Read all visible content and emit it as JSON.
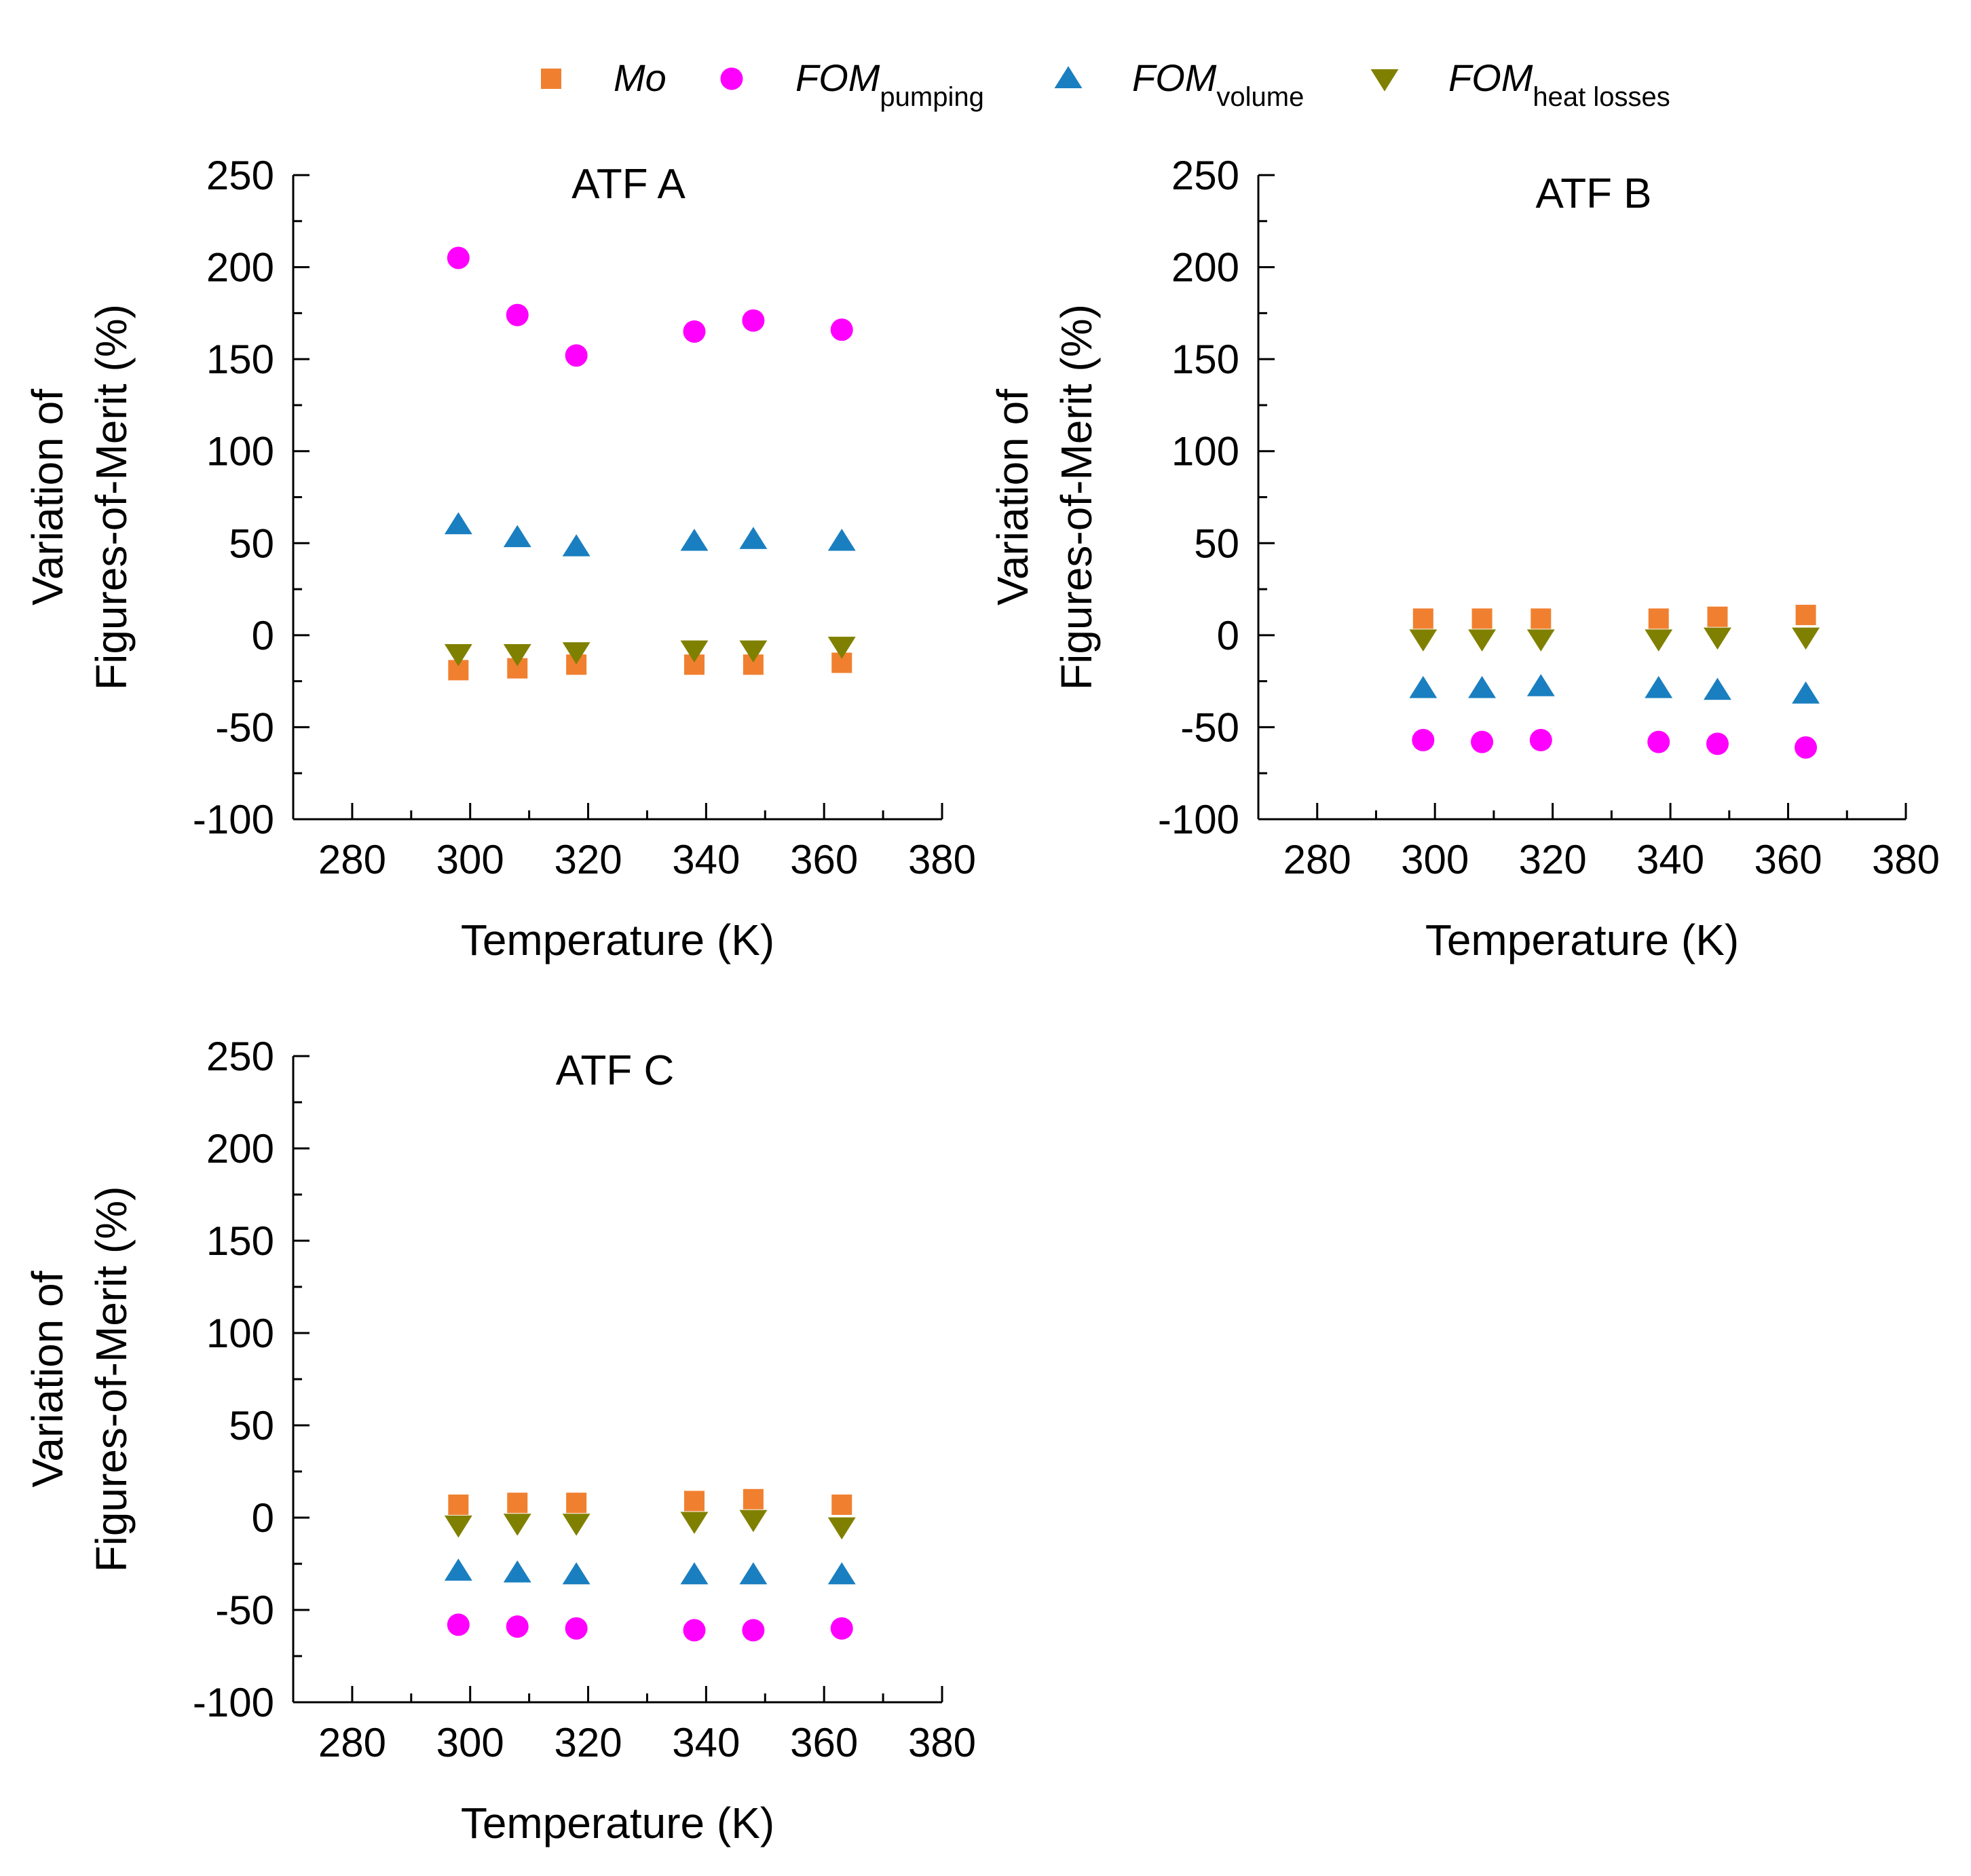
{
  "legend": {
    "entries": [
      {
        "key": "mo",
        "main": "Mo",
        "sub": "",
        "marker": "square",
        "color": "#F08030"
      },
      {
        "key": "pumping",
        "main": "FOM",
        "sub": "pumping",
        "marker": "circle",
        "color": "#FF00FF"
      },
      {
        "key": "volume",
        "main": "FOM",
        "sub": "volume",
        "marker": "triangle-up",
        "color": "#1A7FC0"
      },
      {
        "key": "heat",
        "main": "FOM",
        "sub": "heat losses",
        "marker": "triangle-down",
        "color": "#808000"
      }
    ]
  },
  "chart_data": [
    {
      "type": "scatter",
      "title": "ATF A",
      "xlabel": "Temperature (K)",
      "ylabel": [
        "Variation of",
        "Figures-of-Merit (%)"
      ],
      "xlim": [
        270,
        380
      ],
      "ylim": [
        -100,
        250
      ],
      "xticks": [
        280,
        300,
        320,
        340,
        360,
        380
      ],
      "yticks": [
        -100,
        -50,
        0,
        50,
        100,
        150,
        200,
        250
      ],
      "x": [
        298,
        308,
        318,
        338,
        348,
        363
      ],
      "series": [
        {
          "name": "Mo",
          "key": "mo",
          "values": [
            -19,
            -18,
            -16,
            -16,
            -16,
            -15
          ]
        },
        {
          "name": "FOM pumping",
          "key": "pumping",
          "values": [
            205,
            174,
            152,
            165,
            171,
            166
          ]
        },
        {
          "name": "FOM volume",
          "key": "volume",
          "values": [
            60,
            53,
            48,
            51,
            52,
            51
          ]
        },
        {
          "name": "FOM heat losses",
          "key": "heat",
          "values": [
            -10,
            -10,
            -9,
            -8,
            -8,
            -6
          ]
        }
      ]
    },
    {
      "type": "scatter",
      "title": "ATF B",
      "xlabel": "Temperature (K)",
      "ylabel": [
        "Variation of",
        "Figures-of-Merit (%)"
      ],
      "xlim": [
        270,
        380
      ],
      "ylim": [
        -100,
        250
      ],
      "xticks": [
        280,
        300,
        320,
        340,
        360,
        380
      ],
      "yticks": [
        -100,
        -50,
        0,
        50,
        100,
        150,
        200,
        250
      ],
      "x": [
        298,
        308,
        318,
        338,
        348,
        363
      ],
      "series": [
        {
          "name": "Mo",
          "key": "mo",
          "values": [
            9,
            9,
            9,
            9,
            10,
            11
          ]
        },
        {
          "name": "FOM pumping",
          "key": "pumping",
          "values": [
            -57,
            -58,
            -57,
            -58,
            -59,
            -61
          ]
        },
        {
          "name": "FOM volume",
          "key": "volume",
          "values": [
            -29,
            -29,
            -28,
            -29,
            -30,
            -32
          ]
        },
        {
          "name": "FOM heat losses",
          "key": "heat",
          "values": [
            -2,
            -2,
            -2,
            -2,
            -1,
            -1
          ]
        }
      ]
    },
    {
      "type": "scatter",
      "title": "ATF C",
      "xlabel": "Temperature (K)",
      "ylabel": [
        "Variation of",
        "Figures-of-Merit (%)"
      ],
      "xlim": [
        270,
        380
      ],
      "ylim": [
        -100,
        250
      ],
      "xticks": [
        280,
        300,
        320,
        340,
        360,
        380
      ],
      "yticks": [
        -100,
        -50,
        0,
        50,
        100,
        150,
        200,
        250
      ],
      "x": [
        298,
        308,
        318,
        338,
        348,
        363
      ],
      "series": [
        {
          "name": "Mo",
          "key": "mo",
          "values": [
            7,
            8,
            8,
            9,
            10,
            7
          ]
        },
        {
          "name": "FOM pumping",
          "key": "pumping",
          "values": [
            -58,
            -59,
            -60,
            -61,
            -61,
            -60
          ]
        },
        {
          "name": "FOM volume",
          "key": "volume",
          "values": [
            -29,
            -30,
            -31,
            -31,
            -31,
            -31
          ]
        },
        {
          "name": "FOM heat losses",
          "key": "heat",
          "values": [
            -4,
            -3,
            -3,
            -2,
            -1,
            -5
          ]
        }
      ]
    }
  ]
}
